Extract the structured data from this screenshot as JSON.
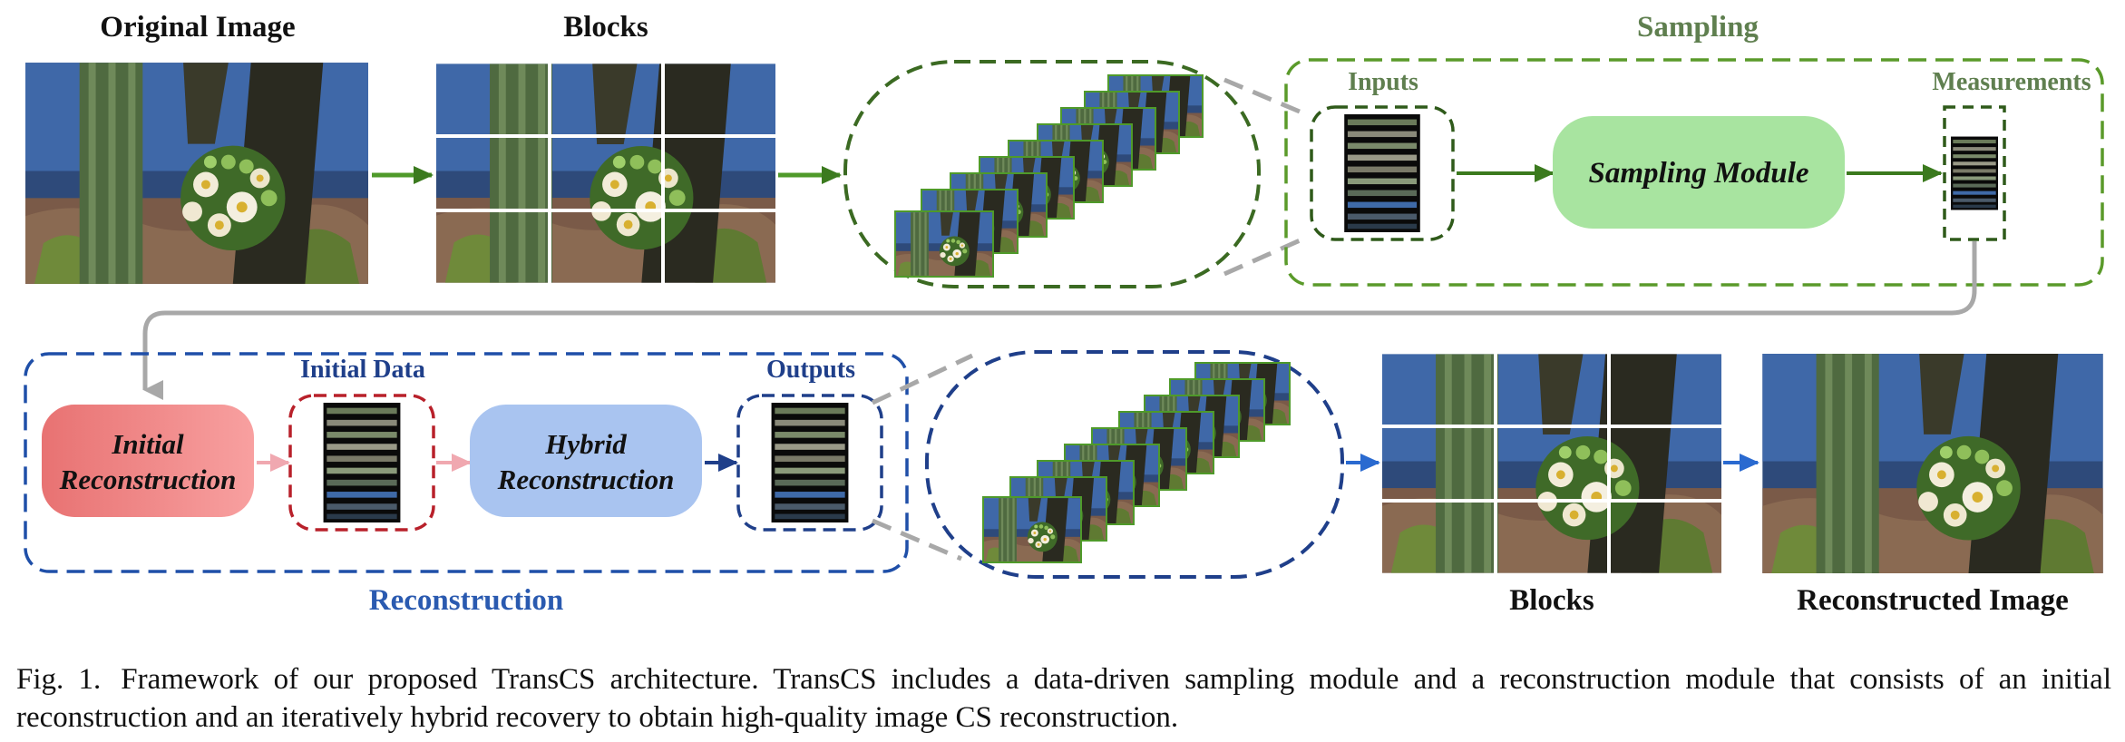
{
  "figure": {
    "top_labels": {
      "original_image": "Original Image",
      "blocks_top": "Blocks",
      "sampling": "Sampling",
      "inputs": "Inputs",
      "measurements": "Measurements"
    },
    "modules": {
      "sampling_module": "Sampling Module",
      "initial_reconstruction_line1": "Initial",
      "initial_reconstruction_line2": "Reconstruction",
      "hybrid_reconstruction_line1": "Hybrid",
      "hybrid_reconstruction_line2": "Reconstruction"
    },
    "bottom_labels": {
      "initial_data": "Initial Data",
      "outputs": "Outputs",
      "reconstruction": "Reconstruction",
      "blocks_bottom": "Blocks",
      "reconstructed_image": "Reconstructed Image"
    }
  },
  "caption": {
    "label": "Fig. 1.",
    "text": "Framework of our proposed TransCS architecture. TransCS includes a data-driven sampling module and a reconstruction module that consists of an initial reconstruction and an iteratively hybrid recovery to obtain high-quality image CS reconstruction."
  },
  "colors": {
    "green_dark": "#3b7a1e",
    "green_arrow": "#4f9a2a",
    "sampling_title": "#5f7f4f",
    "sampling_module_fill": "#a8e4a0",
    "blue_dark": "#1f3f8a",
    "reconstruction_title": "#2a5ab0",
    "hybrid_fill": "#a9c4f0",
    "initial_fill": "#f08a8a",
    "red_dashed": "#b8202a",
    "gray_connector": "#a8a8a8"
  },
  "icons": [
    "cactus-photo",
    "block-stack",
    "vector-strip"
  ]
}
